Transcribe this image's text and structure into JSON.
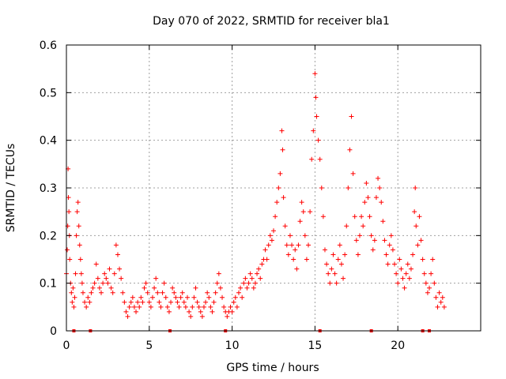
{
  "chart_data": {
    "type": "scatter",
    "title": "Day 070 of 2022, SRMTID for receiver bla1",
    "xlabel": "GPS time / hours",
    "ylabel": "SRMTID / TECUs",
    "xlim": [
      0,
      25
    ],
    "ylim": [
      0,
      0.6
    ],
    "xticks": [
      0,
      5,
      10,
      15,
      20
    ],
    "xtick_labels": [
      "0",
      "5",
      "10",
      "15",
      "20"
    ],
    "yticks": [
      0,
      0.1,
      0.2,
      0.3,
      0.4,
      0.5,
      0.6
    ],
    "ytick_labels": [
      "0",
      "0.1",
      "0.2",
      "0.3",
      "0.4",
      "0.5",
      "0.6"
    ],
    "grid": true,
    "marker": "+",
    "series": [
      {
        "name": "SRMTID",
        "color": "#ff0000",
        "points": [
          [
            0.0,
            0.12
          ],
          [
            0.05,
            0.17
          ],
          [
            0.08,
            0.22
          ],
          [
            0.1,
            0.34
          ],
          [
            0.12,
            0.28
          ],
          [
            0.15,
            0.25
          ],
          [
            0.18,
            0.2
          ],
          [
            0.2,
            0.15
          ],
          [
            0.25,
            0.1
          ],
          [
            0.3,
            0.08
          ],
          [
            0.35,
            0.06
          ],
          [
            0.4,
            0.09
          ],
          [
            0.45,
            0.05
          ],
          [
            0.5,
            0.07
          ],
          [
            0.55,
            0.12
          ],
          [
            0.6,
            0.2
          ],
          [
            0.65,
            0.25
          ],
          [
            0.7,
            0.27
          ],
          [
            0.75,
            0.22
          ],
          [
            0.8,
            0.18
          ],
          [
            0.85,
            0.15
          ],
          [
            0.9,
            0.12
          ],
          [
            0.95,
            0.1
          ],
          [
            1.0,
            0.08
          ],
          [
            1.1,
            0.06
          ],
          [
            1.2,
            0.05
          ],
          [
            1.3,
            0.07
          ],
          [
            1.4,
            0.06
          ],
          [
            1.5,
            0.08
          ],
          [
            1.6,
            0.09
          ],
          [
            1.7,
            0.1
          ],
          [
            1.8,
            0.14
          ],
          [
            1.9,
            0.11
          ],
          [
            2.0,
            0.09
          ],
          [
            2.1,
            0.08
          ],
          [
            2.2,
            0.1
          ],
          [
            2.3,
            0.12
          ],
          [
            2.4,
            0.11
          ],
          [
            2.5,
            0.1
          ],
          [
            2.6,
            0.13
          ],
          [
            2.7,
            0.09
          ],
          [
            2.8,
            0.08
          ],
          [
            2.9,
            0.12
          ],
          [
            3.0,
            0.18
          ],
          [
            3.1,
            0.16
          ],
          [
            3.2,
            0.13
          ],
          [
            3.3,
            0.11
          ],
          [
            3.4,
            0.08
          ],
          [
            3.5,
            0.06
          ],
          [
            3.6,
            0.04
          ],
          [
            3.7,
            0.03
          ],
          [
            3.8,
            0.05
          ],
          [
            3.9,
            0.06
          ],
          [
            4.0,
            0.07
          ],
          [
            4.1,
            0.05
          ],
          [
            4.2,
            0.04
          ],
          [
            4.3,
            0.06
          ],
          [
            4.4,
            0.05
          ],
          [
            4.5,
            0.07
          ],
          [
            4.6,
            0.06
          ],
          [
            4.7,
            0.09
          ],
          [
            4.8,
            0.1
          ],
          [
            4.9,
            0.08
          ],
          [
            5.0,
            0.06
          ],
          [
            5.1,
            0.05
          ],
          [
            5.2,
            0.07
          ],
          [
            5.3,
            0.09
          ],
          [
            5.4,
            0.11
          ],
          [
            5.5,
            0.08
          ],
          [
            5.6,
            0.06
          ],
          [
            5.7,
            0.05
          ],
          [
            5.8,
            0.08
          ],
          [
            5.9,
            0.1
          ],
          [
            6.0,
            0.07
          ],
          [
            6.1,
            0.05
          ],
          [
            6.2,
            0.04
          ],
          [
            6.3,
            0.06
          ],
          [
            6.4,
            0.09
          ],
          [
            6.5,
            0.08
          ],
          [
            6.6,
            0.07
          ],
          [
            6.7,
            0.06
          ],
          [
            6.8,
            0.05
          ],
          [
            6.9,
            0.07
          ],
          [
            7.0,
            0.08
          ],
          [
            7.1,
            0.06
          ],
          [
            7.2,
            0.05
          ],
          [
            7.3,
            0.07
          ],
          [
            7.4,
            0.04
          ],
          [
            7.5,
            0.03
          ],
          [
            7.6,
            0.05
          ],
          [
            7.7,
            0.07
          ],
          [
            7.8,
            0.09
          ],
          [
            7.9,
            0.06
          ],
          [
            8.0,
            0.05
          ],
          [
            8.1,
            0.04
          ],
          [
            8.2,
            0.03
          ],
          [
            8.3,
            0.05
          ],
          [
            8.4,
            0.06
          ],
          [
            8.5,
            0.08
          ],
          [
            8.6,
            0.07
          ],
          [
            8.7,
            0.05
          ],
          [
            8.8,
            0.04
          ],
          [
            8.9,
            0.06
          ],
          [
            9.0,
            0.08
          ],
          [
            9.1,
            0.1
          ],
          [
            9.2,
            0.12
          ],
          [
            9.3,
            0.09
          ],
          [
            9.4,
            0.07
          ],
          [
            9.5,
            0.05
          ],
          [
            9.6,
            0.04
          ],
          [
            9.7,
            0.03
          ],
          [
            9.8,
            0.04
          ],
          [
            9.9,
            0.05
          ],
          [
            10.0,
            0.04
          ],
          [
            10.1,
            0.06
          ],
          [
            10.2,
            0.07
          ],
          [
            10.3,
            0.05
          ],
          [
            10.4,
            0.08
          ],
          [
            10.5,
            0.09
          ],
          [
            10.6,
            0.07
          ],
          [
            10.7,
            0.1
          ],
          [
            10.8,
            0.11
          ],
          [
            10.9,
            0.09
          ],
          [
            11.0,
            0.1
          ],
          [
            11.1,
            0.12
          ],
          [
            11.2,
            0.11
          ],
          [
            11.3,
            0.09
          ],
          [
            11.4,
            0.1
          ],
          [
            11.5,
            0.12
          ],
          [
            11.6,
            0.13
          ],
          [
            11.7,
            0.11
          ],
          [
            11.8,
            0.14
          ],
          [
            11.9,
            0.15
          ],
          [
            12.0,
            0.17
          ],
          [
            12.1,
            0.15
          ],
          [
            12.2,
            0.18
          ],
          [
            12.3,
            0.2
          ],
          [
            12.4,
            0.19
          ],
          [
            12.5,
            0.21
          ],
          [
            12.6,
            0.24
          ],
          [
            12.7,
            0.27
          ],
          [
            12.8,
            0.3
          ],
          [
            12.9,
            0.33
          ],
          [
            13.0,
            0.42
          ],
          [
            13.05,
            0.38
          ],
          [
            13.1,
            0.28
          ],
          [
            13.2,
            0.22
          ],
          [
            13.3,
            0.18
          ],
          [
            13.4,
            0.16
          ],
          [
            13.5,
            0.2
          ],
          [
            13.6,
            0.18
          ],
          [
            13.7,
            0.15
          ],
          [
            13.8,
            0.17
          ],
          [
            13.9,
            0.13
          ],
          [
            14.0,
            0.18
          ],
          [
            14.1,
            0.23
          ],
          [
            14.2,
            0.27
          ],
          [
            14.3,
            0.25
          ],
          [
            14.4,
            0.2
          ],
          [
            14.5,
            0.15
          ],
          [
            14.6,
            0.18
          ],
          [
            14.7,
            0.25
          ],
          [
            14.8,
            0.36
          ],
          [
            14.9,
            0.42
          ],
          [
            15.0,
            0.54
          ],
          [
            15.05,
            0.49
          ],
          [
            15.1,
            0.45
          ],
          [
            15.2,
            0.4
          ],
          [
            15.3,
            0.36
          ],
          [
            15.4,
            0.3
          ],
          [
            15.5,
            0.24
          ],
          [
            15.6,
            0.17
          ],
          [
            15.7,
            0.14
          ],
          [
            15.8,
            0.12
          ],
          [
            15.9,
            0.1
          ],
          [
            16.0,
            0.13
          ],
          [
            16.1,
            0.16
          ],
          [
            16.2,
            0.12
          ],
          [
            16.3,
            0.1
          ],
          [
            16.4,
            0.15
          ],
          [
            16.5,
            0.18
          ],
          [
            16.6,
            0.14
          ],
          [
            16.7,
            0.11
          ],
          [
            16.8,
            0.16
          ],
          [
            16.9,
            0.22
          ],
          [
            17.0,
            0.3
          ],
          [
            17.1,
            0.38
          ],
          [
            17.2,
            0.45
          ],
          [
            17.3,
            0.33
          ],
          [
            17.4,
            0.24
          ],
          [
            17.5,
            0.19
          ],
          [
            17.6,
            0.16
          ],
          [
            17.7,
            0.2
          ],
          [
            17.8,
            0.24
          ],
          [
            17.9,
            0.22
          ],
          [
            18.0,
            0.27
          ],
          [
            18.1,
            0.31
          ],
          [
            18.2,
            0.28
          ],
          [
            18.3,
            0.24
          ],
          [
            18.4,
            0.2
          ],
          [
            18.5,
            0.17
          ],
          [
            18.6,
            0.19
          ],
          [
            18.7,
            0.28
          ],
          [
            18.8,
            0.32
          ],
          [
            18.9,
            0.3
          ],
          [
            19.0,
            0.27
          ],
          [
            19.1,
            0.23
          ],
          [
            19.2,
            0.19
          ],
          [
            19.3,
            0.16
          ],
          [
            19.4,
            0.14
          ],
          [
            19.5,
            0.18
          ],
          [
            19.6,
            0.2
          ],
          [
            19.7,
            0.17
          ],
          [
            19.8,
            0.14
          ],
          [
            19.9,
            0.12
          ],
          [
            20.0,
            0.1
          ],
          [
            20.1,
            0.15
          ],
          [
            20.2,
            0.13
          ],
          [
            20.3,
            0.11
          ],
          [
            20.4,
            0.09
          ],
          [
            20.5,
            0.12
          ],
          [
            20.6,
            0.14
          ],
          [
            20.7,
            0.11
          ],
          [
            20.8,
            0.13
          ],
          [
            20.9,
            0.16
          ],
          [
            21.0,
            0.25
          ],
          [
            21.05,
            0.3
          ],
          [
            21.1,
            0.22
          ],
          [
            21.2,
            0.18
          ],
          [
            21.3,
            0.24
          ],
          [
            21.4,
            0.19
          ],
          [
            21.5,
            0.15
          ],
          [
            21.6,
            0.12
          ],
          [
            21.7,
            0.1
          ],
          [
            21.8,
            0.08
          ],
          [
            21.9,
            0.09
          ],
          [
            22.0,
            0.12
          ],
          [
            22.1,
            0.15
          ],
          [
            22.2,
            0.1
          ],
          [
            22.3,
            0.07
          ],
          [
            22.4,
            0.05
          ],
          [
            22.5,
            0.08
          ],
          [
            22.6,
            0.06
          ],
          [
            22.7,
            0.07
          ],
          [
            22.8,
            0.05
          ]
        ]
      }
    ],
    "gap_markers_x": [
      0.45,
      1.45,
      6.25,
      9.6,
      15.3,
      18.4,
      21.5,
      21.9
    ]
  }
}
